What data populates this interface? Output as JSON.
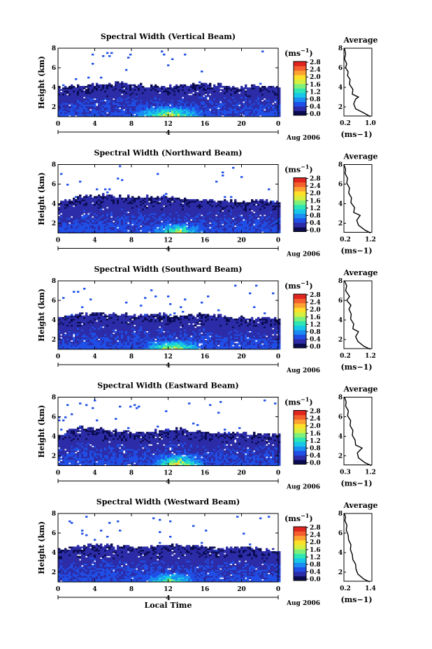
{
  "figure": {
    "xlabel": "Local Time",
    "date_label": "Aug 2006",
    "day_marker": "4",
    "ylabel": "Height (km)",
    "x_ticks": [
      "0",
      "4",
      "8",
      "12",
      "16",
      "20",
      "0"
    ],
    "y_ticks": [
      "2",
      "4",
      "6",
      "8"
    ],
    "colorbar_unit_prefix": "(ms",
    "colorbar_unit_exp": "−1",
    "colorbar_unit_suffix": ")",
    "colorbar_ticks": [
      "0.0",
      "0.4",
      "0.8",
      "1.2",
      "1.6",
      "2.0",
      "2.4",
      "2.8"
    ],
    "colorbar_colors": [
      "#0b0b50",
      "#2c2ca8",
      "#1f4fe6",
      "#1a8cf2",
      "#17c7e8",
      "#2ee6b4",
      "#7ef07a",
      "#d6ee3e",
      "#fde02a",
      "#fca232",
      "#f3602e",
      "#e0241e"
    ],
    "profile_title": "Average",
    "profile_unit": "(ms−1)"
  },
  "chart_data": [
    {
      "type": "heatmap",
      "title": "Spectral Width (Vertical Beam)",
      "xlabel": "Local Time",
      "ylabel": "Height (km)",
      "xlim": [
        0,
        24
      ],
      "ylim": [
        1,
        8
      ],
      "zlim": [
        0,
        2.8
      ],
      "date": "Aug 2006",
      "data_top_km": [
        4.0,
        4.1,
        4.3,
        4.4,
        4.2,
        4.0,
        4.1,
        4.3,
        4.2,
        4.0,
        4.1,
        3.9
      ],
      "peak": {
        "time_range": [
          8,
          16
        ],
        "height_range": [
          1.0,
          2.2
        ],
        "value": 1.6
      }
    },
    {
      "type": "heatmap",
      "title": "Spectral Width (Northward Beam)",
      "xlabel": "Local Time",
      "ylabel": "Height (km)",
      "xlim": [
        0,
        24
      ],
      "ylim": [
        1,
        8
      ],
      "zlim": [
        0,
        2.8
      ],
      "date": "Aug 2006",
      "data_top_km": [
        4.1,
        4.6,
        4.8,
        4.7,
        4.6,
        4.7,
        4.5,
        4.4,
        4.3,
        4.2,
        4.3,
        4.1
      ],
      "peak": {
        "time_range": [
          10,
          16
        ],
        "height_range": [
          1.0,
          2.0
        ],
        "value": 1.4
      }
    },
    {
      "type": "heatmap",
      "title": "Spectral Width (Southward Beam)",
      "xlabel": "Local Time",
      "ylabel": "Height (km)",
      "xlim": [
        0,
        24
      ],
      "ylim": [
        1,
        8
      ],
      "zlim": [
        0,
        2.8
      ],
      "date": "Aug 2006",
      "data_top_km": [
        4.2,
        4.5,
        4.6,
        4.5,
        4.4,
        4.5,
        4.3,
        4.5,
        4.4,
        4.2,
        4.1,
        4.0
      ],
      "peak": {
        "time_range": [
          9,
          16
        ],
        "height_range": [
          1.0,
          2.0
        ],
        "value": 1.6
      }
    },
    {
      "type": "heatmap",
      "title": "Spectral Width (Eastward Beam)",
      "xlabel": "Local Time",
      "ylabel": "Height (km)",
      "xlim": [
        0,
        24
      ],
      "ylim": [
        1,
        8
      ],
      "zlim": [
        0,
        2.8
      ],
      "date": "Aug 2006",
      "data_top_km": [
        4.1,
        4.8,
        4.7,
        4.5,
        4.4,
        4.6,
        4.7,
        4.4,
        4.3,
        4.3,
        4.2,
        4.1
      ],
      "peak": {
        "time_range": [
          10,
          16
        ],
        "height_range": [
          1.0,
          2.2
        ],
        "value": 1.8
      }
    },
    {
      "type": "heatmap",
      "title": "Spectral Width (Westward Beam)",
      "xlabel": "Local Time",
      "ylabel": "Height (km)",
      "xlim": [
        0,
        24
      ],
      "ylim": [
        1,
        8
      ],
      "zlim": [
        0,
        2.8
      ],
      "date": "Aug 2006",
      "data_top_km": [
        4.2,
        4.6,
        4.8,
        4.5,
        4.5,
        4.7,
        4.8,
        4.6,
        4.4,
        4.5,
        4.3,
        4.1
      ],
      "peak": {
        "time_range": [
          9,
          15
        ],
        "height_range": [
          1.0,
          2.0
        ],
        "value": 1.2
      }
    },
    {
      "type": "line",
      "title": "Average",
      "xlabel": "(ms−1)",
      "x_ticks": [
        "0.2",
        "1.0"
      ],
      "xlim": [
        0.2,
        1.2
      ],
      "ylim": [
        1,
        8
      ],
      "y_ticks": [
        "2",
        "4",
        "6",
        "8"
      ],
      "points": [
        [
          1.15,
          1.0
        ],
        [
          0.9,
          1.4
        ],
        [
          0.62,
          1.8
        ],
        [
          0.55,
          2.3
        ],
        [
          0.62,
          2.8
        ],
        [
          0.72,
          3.0
        ],
        [
          0.5,
          3.3
        ],
        [
          0.52,
          3.8
        ],
        [
          0.4,
          4.3
        ],
        [
          0.42,
          4.8
        ],
        [
          0.33,
          5.2
        ],
        [
          0.35,
          5.6
        ],
        [
          0.26,
          6.0
        ],
        [
          0.3,
          6.4
        ],
        [
          0.22,
          6.9
        ],
        [
          0.26,
          7.4
        ],
        [
          0.22,
          8.0
        ]
      ]
    },
    {
      "type": "line",
      "title": "Average",
      "xlabel": "(ms−1)",
      "x_ticks": [
        "0.2",
        "1.2"
      ],
      "xlim": [
        0.2,
        1.2
      ],
      "ylim": [
        1,
        8
      ],
      "y_ticks": [
        "2",
        "4",
        "6",
        "8"
      ],
      "points": [
        [
          1.15,
          1.0
        ],
        [
          0.95,
          1.3
        ],
        [
          0.72,
          1.8
        ],
        [
          0.66,
          2.3
        ],
        [
          0.78,
          2.8
        ],
        [
          0.55,
          3.1
        ],
        [
          0.58,
          3.6
        ],
        [
          0.45,
          4.1
        ],
        [
          0.47,
          4.6
        ],
        [
          0.37,
          5.1
        ],
        [
          0.4,
          5.6
        ],
        [
          0.3,
          6.1
        ],
        [
          0.33,
          6.6
        ],
        [
          0.24,
          7.1
        ],
        [
          0.26,
          7.5
        ],
        [
          0.2,
          8.0
        ]
      ]
    },
    {
      "type": "line",
      "title": "Average",
      "xlabel": "(ms−1)",
      "x_ticks": [
        "0.2",
        "1.2"
      ],
      "xlim": [
        0.2,
        1.2
      ],
      "ylim": [
        1,
        8
      ],
      "y_ticks": [
        "2",
        "4",
        "6",
        "8"
      ],
      "points": [
        [
          1.15,
          1.0
        ],
        [
          0.92,
          1.3
        ],
        [
          0.7,
          1.8
        ],
        [
          0.62,
          2.3
        ],
        [
          0.72,
          2.8
        ],
        [
          0.52,
          3.1
        ],
        [
          0.55,
          3.6
        ],
        [
          0.44,
          4.1
        ],
        [
          0.46,
          4.6
        ],
        [
          0.38,
          5.1
        ],
        [
          0.45,
          5.5
        ],
        [
          0.3,
          6.0
        ],
        [
          0.4,
          6.4
        ],
        [
          0.26,
          7.0
        ],
        [
          0.3,
          7.5
        ],
        [
          0.22,
          8.0
        ]
      ]
    },
    {
      "type": "line",
      "title": "Average",
      "xlabel": "(ms−1)",
      "x_ticks": [
        "0.3",
        "1.2"
      ],
      "xlim": [
        0.2,
        1.2
      ],
      "ylim": [
        1,
        8
      ],
      "y_ticks": [
        "2",
        "4",
        "6",
        "8"
      ],
      "points": [
        [
          1.18,
          1.0
        ],
        [
          0.95,
          1.3
        ],
        [
          0.72,
          1.8
        ],
        [
          0.68,
          2.3
        ],
        [
          0.85,
          2.8
        ],
        [
          0.62,
          3.1
        ],
        [
          0.6,
          3.6
        ],
        [
          0.5,
          4.1
        ],
        [
          0.52,
          4.6
        ],
        [
          0.42,
          5.1
        ],
        [
          0.44,
          5.6
        ],
        [
          0.33,
          6.1
        ],
        [
          0.36,
          6.6
        ],
        [
          0.26,
          7.1
        ],
        [
          0.28,
          7.5
        ],
        [
          0.22,
          8.0
        ]
      ]
    },
    {
      "type": "line",
      "title": "Average",
      "xlabel": "(ms−1)",
      "x_ticks": [
        "0.2",
        "1.4"
      ],
      "xlim": [
        0.2,
        1.4
      ],
      "ylim": [
        1,
        8
      ],
      "y_ticks": [
        "2",
        "4",
        "6",
        "8"
      ],
      "points": [
        [
          1.3,
          1.0
        ],
        [
          1.05,
          1.3
        ],
        [
          0.8,
          1.8
        ],
        [
          0.72,
          2.3
        ],
        [
          0.7,
          2.8
        ],
        [
          0.58,
          3.3
        ],
        [
          0.56,
          3.8
        ],
        [
          0.48,
          4.3
        ],
        [
          0.5,
          4.8
        ],
        [
          0.4,
          5.3
        ],
        [
          0.38,
          5.8
        ],
        [
          0.3,
          6.3
        ],
        [
          0.33,
          6.8
        ],
        [
          0.24,
          7.3
        ],
        [
          0.27,
          7.6
        ],
        [
          0.22,
          8.0
        ]
      ]
    }
  ]
}
